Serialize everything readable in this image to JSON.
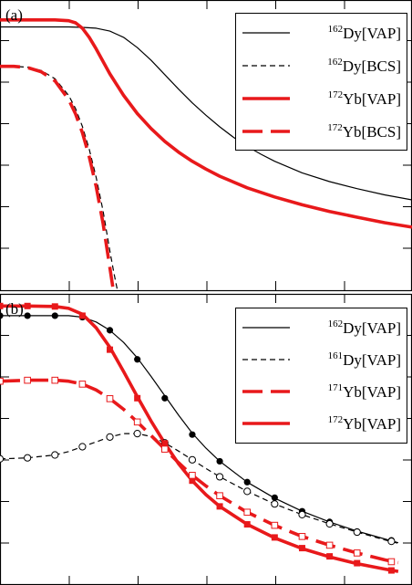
{
  "chart_data": [
    {
      "type": "line",
      "panel_label": "(a)",
      "xlim": [
        0,
        3
      ],
      "ylim": [
        0,
        7
      ],
      "legend_position": "top-right",
      "series": [
        {
          "name_mass": "162",
          "name_element": "Dy",
          "name_method": "[VAP]",
          "color": "#000000",
          "style": "solid",
          "width": "thin",
          "x": [
            0.0,
            0.2,
            0.4,
            0.5,
            0.6,
            0.7,
            0.8,
            0.9,
            1.0,
            1.1,
            1.2,
            1.3,
            1.4,
            1.5,
            1.6,
            1.7,
            1.8,
            1.9,
            2.0,
            2.2,
            2.4,
            2.6,
            2.8,
            3.0
          ],
          "y": [
            6.35,
            6.35,
            6.35,
            6.35,
            6.34,
            6.32,
            6.25,
            6.1,
            5.85,
            5.55,
            5.2,
            4.85,
            4.52,
            4.22,
            3.94,
            3.69,
            3.47,
            3.28,
            3.11,
            2.83,
            2.62,
            2.45,
            2.3,
            2.18
          ]
        },
        {
          "name_mass": "162",
          "name_element": "Dy",
          "name_method": "[BCS]",
          "color": "#000000",
          "style": "dashed",
          "width": "thin",
          "x": [
            0.0,
            0.1,
            0.2,
            0.3,
            0.4,
            0.5,
            0.55,
            0.6,
            0.65,
            0.7,
            0.75,
            0.8,
            0.83,
            0.855
          ],
          "y": [
            5.4,
            5.4,
            5.38,
            5.3,
            5.1,
            4.7,
            4.38,
            3.95,
            3.4,
            2.72,
            1.92,
            0.95,
            0.4,
            0.0
          ]
        },
        {
          "name_mass": "172",
          "name_element": "Yb",
          "name_method": "[VAP]",
          "color": "#e8191b",
          "style": "solid",
          "width": "thick",
          "x": [
            0.0,
            0.2,
            0.4,
            0.5,
            0.55,
            0.6,
            0.65,
            0.7,
            0.75,
            0.8,
            0.9,
            1.0,
            1.1,
            1.2,
            1.3,
            1.4,
            1.5,
            1.6,
            1.8,
            2.0,
            2.2,
            2.4,
            2.6,
            2.8,
            3.0
          ],
          "y": [
            6.52,
            6.52,
            6.52,
            6.5,
            6.45,
            6.32,
            6.1,
            5.82,
            5.52,
            5.22,
            4.7,
            4.26,
            3.9,
            3.59,
            3.33,
            3.11,
            2.92,
            2.75,
            2.47,
            2.25,
            2.06,
            1.9,
            1.76,
            1.63,
            1.52
          ]
        },
        {
          "name_mass": "172",
          "name_element": "Yb",
          "name_method": "[BCS]",
          "color": "#e8191b",
          "style": "dashed",
          "width": "thick",
          "x": [
            0.0,
            0.1,
            0.2,
            0.3,
            0.4,
            0.5,
            0.55,
            0.6,
            0.65,
            0.7,
            0.75,
            0.8,
            0.825
          ],
          "y": [
            5.4,
            5.4,
            5.37,
            5.27,
            5.05,
            4.6,
            4.25,
            3.8,
            3.22,
            2.5,
            1.62,
            0.55,
            0.0
          ]
        }
      ]
    },
    {
      "type": "line",
      "panel_label": "(b)",
      "xlim": [
        0,
        3
      ],
      "ylim": [
        0,
        6
      ],
      "legend_position": "top-right",
      "series": [
        {
          "name_mass": "162",
          "name_element": "Dy",
          "name_method": "[VAP]",
          "color": "#000000",
          "style": "solid",
          "width": "thin",
          "x": [
            0.0,
            0.2,
            0.4,
            0.5,
            0.6,
            0.7,
            0.8,
            0.9,
            1.0,
            1.1,
            1.2,
            1.3,
            1.4,
            1.5,
            1.6,
            1.8,
            2.0,
            2.2,
            2.4,
            2.6,
            2.8,
            2.9
          ],
          "y": [
            5.55,
            5.55,
            5.55,
            5.55,
            5.52,
            5.42,
            5.25,
            5.0,
            4.68,
            4.3,
            3.9,
            3.5,
            3.13,
            2.82,
            2.55,
            2.12,
            1.79,
            1.52,
            1.3,
            1.11,
            0.95,
            0.87
          ]
        },
        {
          "name_mass": "161",
          "name_element": "Dy",
          "name_method": "[VAP]",
          "color": "#000000",
          "style": "dashed",
          "width": "thin",
          "x": [
            0.0,
            0.2,
            0.4,
            0.5,
            0.6,
            0.7,
            0.8,
            0.9,
            1.0,
            1.1,
            1.2,
            1.3,
            1.4,
            1.5,
            1.6,
            1.8,
            2.0,
            2.2,
            2.4,
            2.6,
            2.8,
            2.9
          ],
          "y": [
            2.6,
            2.62,
            2.68,
            2.75,
            2.85,
            2.95,
            3.05,
            3.12,
            3.12,
            3.06,
            2.93,
            2.76,
            2.58,
            2.4,
            2.23,
            1.93,
            1.67,
            1.45,
            1.26,
            1.09,
            0.93,
            0.86
          ]
        },
        {
          "name_mass": "171",
          "name_element": "Yb",
          "name_method": "[VAP]",
          "color": "#e8191b",
          "style": "dashed",
          "width": "thick",
          "x": [
            0.0,
            0.2,
            0.4,
            0.5,
            0.6,
            0.7,
            0.8,
            0.9,
            1.0,
            1.1,
            1.2,
            1.3,
            1.4,
            1.5,
            1.6,
            1.8,
            2.0,
            2.2,
            2.4,
            2.6,
            2.8,
            2.9
          ],
          "y": [
            4.2,
            4.22,
            4.22,
            4.2,
            4.14,
            4.02,
            3.84,
            3.62,
            3.36,
            3.08,
            2.8,
            2.52,
            2.26,
            2.04,
            1.84,
            1.5,
            1.23,
            1.0,
            0.82,
            0.66,
            0.52,
            0.46
          ]
        },
        {
          "name_mass": "172",
          "name_element": "Yb",
          "name_method": "[VAP]",
          "color": "#e8191b",
          "style": "solid",
          "width": "thick",
          "x": [
            0.0,
            0.2,
            0.4,
            0.5,
            0.6,
            0.7,
            0.8,
            0.9,
            1.0,
            1.1,
            1.2,
            1.3,
            1.4,
            1.5,
            1.6,
            1.8,
            2.0,
            2.2,
            2.4,
            2.6,
            2.8,
            2.9
          ],
          "y": [
            5.75,
            5.75,
            5.74,
            5.7,
            5.58,
            5.3,
            4.9,
            4.4,
            3.88,
            3.38,
            2.92,
            2.5,
            2.15,
            1.86,
            1.62,
            1.25,
            0.97,
            0.75,
            0.58,
            0.44,
            0.33,
            0.28
          ]
        }
      ],
      "markers": [
        {
          "marker": "filled-circle",
          "color": "#000000",
          "x": [
            0.0,
            0.2,
            0.4,
            0.6,
            0.8,
            1.0,
            1.2,
            1.4,
            1.6,
            1.8,
            2.0,
            2.2,
            2.4,
            2.6,
            2.85
          ],
          "y": [
            5.55,
            5.55,
            5.55,
            5.52,
            5.25,
            4.65,
            3.85,
            3.1,
            2.55,
            2.12,
            1.8,
            1.52,
            1.3,
            1.1,
            0.92
          ]
        },
        {
          "marker": "open-circle",
          "color": "#000000",
          "x": [
            0.0,
            0.2,
            0.4,
            0.6,
            0.8,
            1.0,
            1.2,
            1.4,
            1.6,
            1.8,
            2.0,
            2.2,
            2.4,
            2.6,
            2.85
          ],
          "y": [
            2.6,
            2.62,
            2.68,
            2.85,
            3.05,
            3.12,
            2.93,
            2.58,
            2.23,
            1.93,
            1.67,
            1.45,
            1.26,
            1.09,
            0.9
          ]
        },
        {
          "marker": "filled-square",
          "color": "#e8191b",
          "x": [
            0.0,
            0.2,
            0.4,
            0.6,
            0.8,
            1.0,
            1.2,
            1.4,
            1.6,
            1.8,
            2.0,
            2.2,
            2.4,
            2.6,
            2.85
          ],
          "y": [
            5.75,
            5.75,
            5.74,
            5.55,
            4.85,
            3.85,
            2.92,
            2.15,
            1.62,
            1.25,
            0.98,
            0.76,
            0.59,
            0.45,
            0.3
          ]
        },
        {
          "marker": "open-square",
          "color": "#e8191b",
          "x": [
            0.0,
            0.2,
            0.4,
            0.6,
            0.8,
            1.0,
            1.2,
            1.4,
            1.6,
            1.8,
            2.0,
            2.2,
            2.4,
            2.6,
            2.85
          ],
          "y": [
            4.2,
            4.22,
            4.22,
            4.14,
            3.84,
            3.36,
            2.8,
            2.26,
            1.84,
            1.5,
            1.23,
            1.0,
            0.82,
            0.66,
            0.48
          ]
        }
      ]
    }
  ]
}
